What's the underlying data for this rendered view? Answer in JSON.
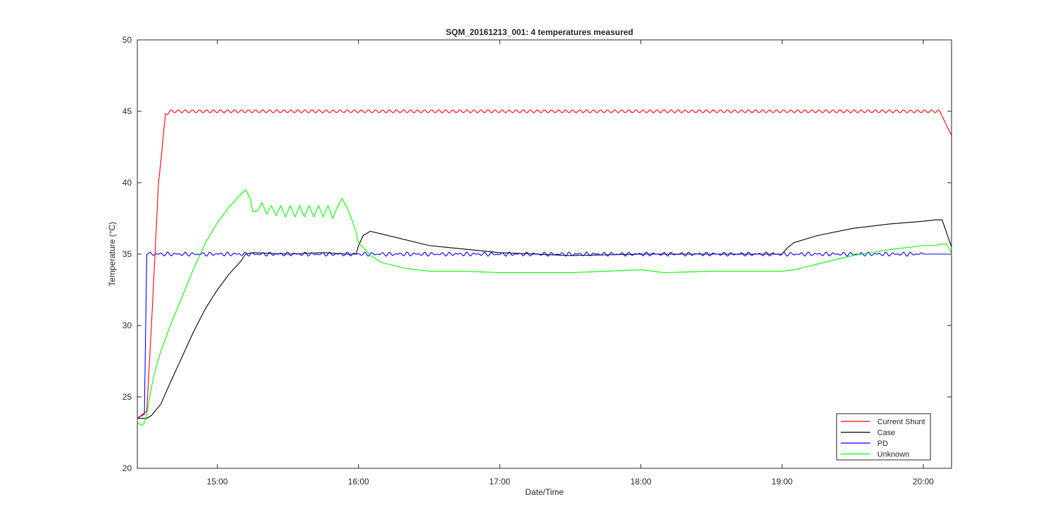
{
  "chart_data": {
    "type": "line",
    "title": "SQM_20161213_001: 4 temperatures measured",
    "xlabel": "Date/Time",
    "ylabel": "Temperature (°C)",
    "xlim": [
      "14:26",
      "20:12"
    ],
    "ylim": [
      20,
      50
    ],
    "x_ticks": [
      "15:00",
      "16:00",
      "17:00",
      "18:00",
      "19:00",
      "20:00"
    ],
    "y_ticks": [
      20,
      25,
      30,
      35,
      40,
      45,
      50
    ],
    "grid": false,
    "legend_position": "bottom-right",
    "series": [
      {
        "name": "Current Shunt",
        "color": "#ff0000",
        "oscillation": 0.1,
        "x": [
          "14:26",
          "14:30",
          "14:32",
          "14:35",
          "14:38",
          "14:40",
          "15:00",
          "16:00",
          "17:00",
          "18:00",
          "19:00",
          "20:00",
          "20:07",
          "20:12"
        ],
        "y": [
          23.5,
          24.0,
          30.0,
          40.0,
          44.8,
          45.0,
          45.0,
          45.0,
          45.0,
          45.0,
          45.0,
          45.0,
          45.0,
          43.3
        ]
      },
      {
        "name": "Case",
        "color": "#000000",
        "x": [
          "14:26",
          "14:30",
          "14:32",
          "14:36",
          "14:40",
          "14:45",
          "14:50",
          "14:55",
          "15:00",
          "15:05",
          "15:10",
          "15:12",
          "15:15",
          "15:30",
          "15:45",
          "15:55",
          "15:59",
          "16:00",
          "16:02",
          "16:05",
          "16:10",
          "16:30",
          "17:00",
          "17:30",
          "18:00",
          "18:30",
          "19:00",
          "19:02",
          "19:05",
          "19:15",
          "19:30",
          "19:45",
          "20:00",
          "20:05",
          "20:08",
          "20:12"
        ],
        "y": [
          23.5,
          23.5,
          23.7,
          24.5,
          26.0,
          27.8,
          29.6,
          31.2,
          32.5,
          33.6,
          34.5,
          35.0,
          35.1,
          35.0,
          35.1,
          35.0,
          35.0,
          35.6,
          36.3,
          36.6,
          36.4,
          35.6,
          35.1,
          34.9,
          35.0,
          35.0,
          35.0,
          35.4,
          35.8,
          36.3,
          36.8,
          37.1,
          37.3,
          37.4,
          37.4,
          35.5
        ]
      },
      {
        "name": "PD",
        "color": "#0000ff",
        "oscillation": 0.15,
        "x": [
          "14:26",
          "14:29",
          "14:30",
          "14:31",
          "15:00",
          "16:00",
          "17:00",
          "18:00",
          "19:00",
          "20:00",
          "20:12"
        ],
        "y": [
          23.5,
          23.8,
          35.0,
          35.0,
          35.0,
          35.0,
          35.0,
          35.0,
          35.0,
          35.0,
          35.0
        ]
      },
      {
        "name": "Unknown",
        "color": "#00ff00",
        "x": [
          "14:26",
          "14:28",
          "14:29",
          "14:30",
          "14:31",
          "14:33",
          "14:36",
          "14:40",
          "14:45",
          "14:50",
          "14:55",
          "15:00",
          "15:05",
          "15:10",
          "15:12",
          "15:14",
          "15:15",
          "15:17",
          "15:19",
          "15:21",
          "15:23",
          "15:25",
          "15:27",
          "15:29",
          "15:31",
          "15:33",
          "15:35",
          "15:37",
          "15:39",
          "15:41",
          "15:43",
          "15:45",
          "15:47",
          "15:49",
          "15:51",
          "15:53",
          "15:55",
          "15:57",
          "15:59",
          "16:00",
          "16:03",
          "16:05",
          "16:10",
          "16:20",
          "16:30",
          "16:45",
          "17:00",
          "17:30",
          "18:00",
          "18:05",
          "18:10",
          "18:30",
          "19:00",
          "19:05",
          "19:15",
          "19:30",
          "19:45",
          "20:00",
          "20:05",
          "20:08",
          "20:10",
          "20:12"
        ],
        "y": [
          23.2,
          23.0,
          23.2,
          23.8,
          24.8,
          26.5,
          28.2,
          30.0,
          32.0,
          34.0,
          35.8,
          37.2,
          38.3,
          39.2,
          39.5,
          38.9,
          38.0,
          38.0,
          38.6,
          37.8,
          38.4,
          37.7,
          38.4,
          37.6,
          38.4,
          37.6,
          38.4,
          37.6,
          38.4,
          37.6,
          38.4,
          37.6,
          38.4,
          37.5,
          38.3,
          38.9,
          38.3,
          37.5,
          36.5,
          35.8,
          35.3,
          34.9,
          34.4,
          34.0,
          33.8,
          33.8,
          33.7,
          33.7,
          33.9,
          33.8,
          33.7,
          33.8,
          33.8,
          33.9,
          34.3,
          34.9,
          35.3,
          35.6,
          35.6,
          35.7,
          35.7,
          35.1
        ]
      }
    ]
  }
}
